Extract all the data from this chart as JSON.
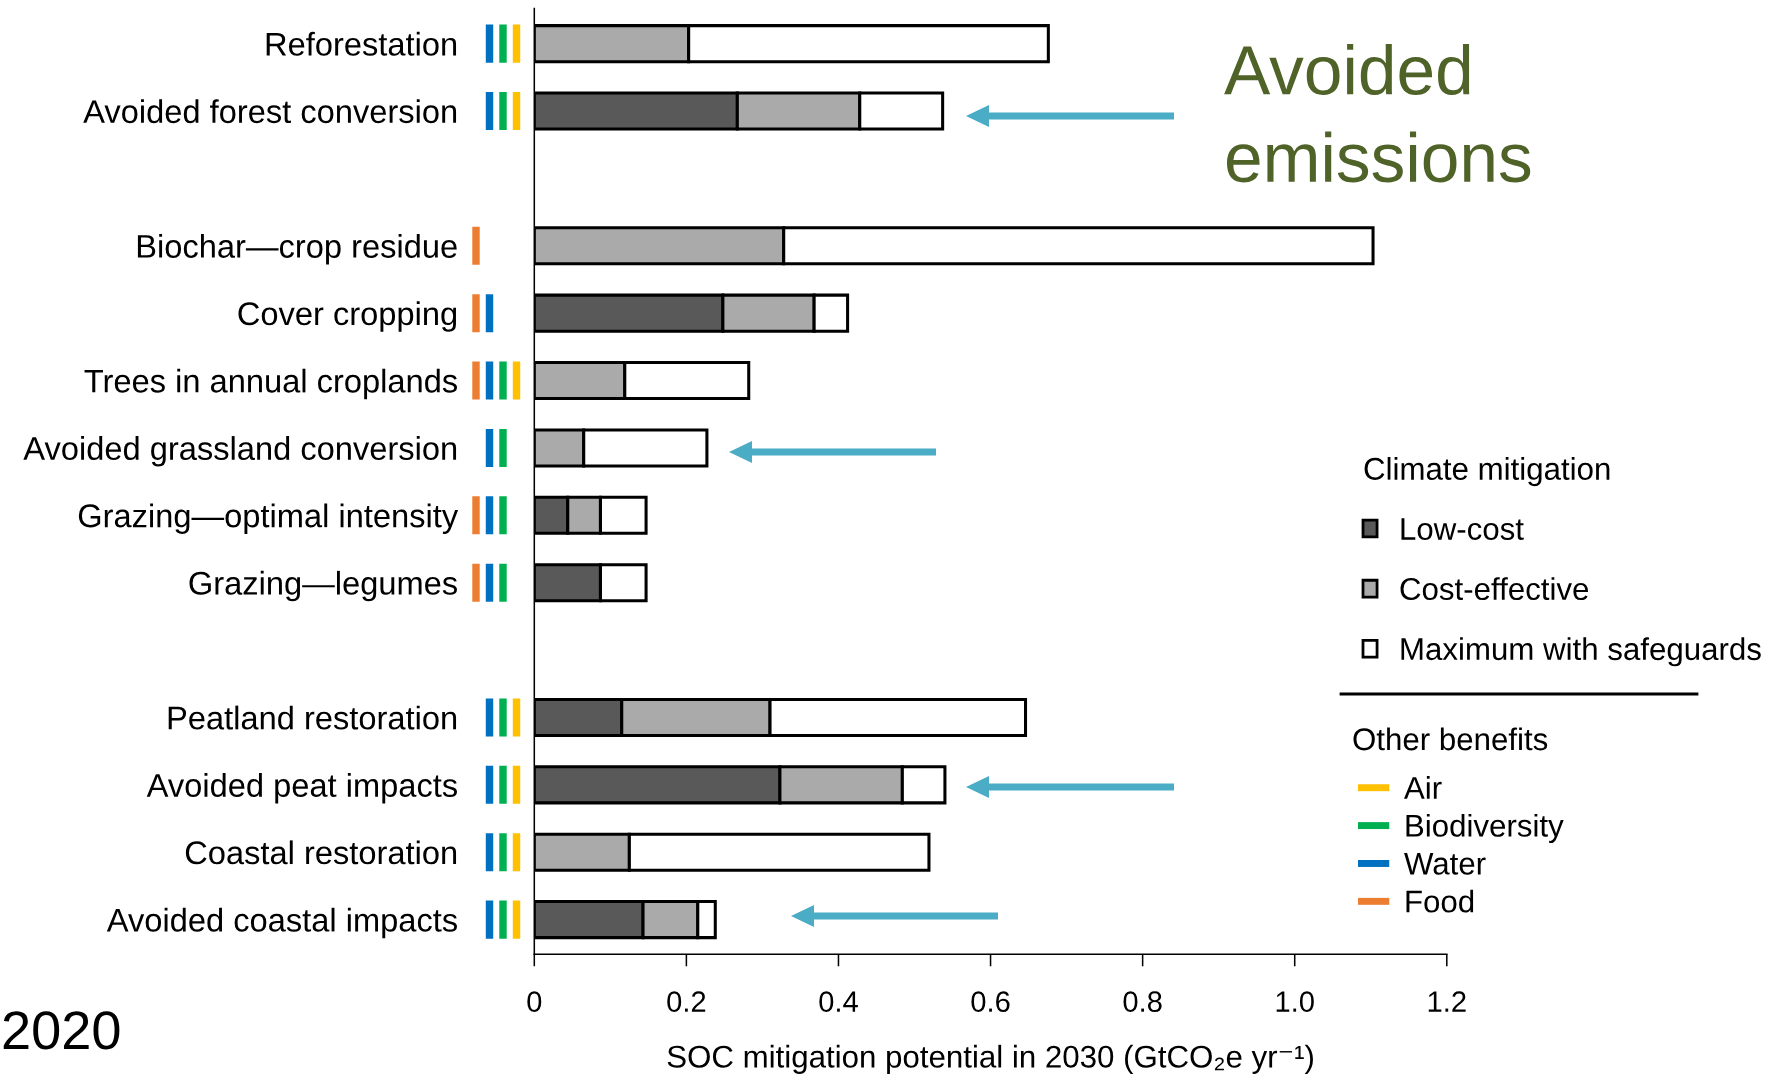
{
  "chart_data": {
    "type": "bar",
    "orientation": "horizontal",
    "stacked": true,
    "categories": [
      "Reforestation",
      "Avoided forest conversion",
      null,
      "Biochar—crop residue",
      "Cover cropping",
      "Trees in annual croplands",
      "Avoided grassland conversion",
      "Grazing—optimal intensity",
      "Grazing—legumes",
      null,
      "Peatland restoration",
      "Avoided peat impacts",
      "Coastal restoration",
      "Avoided coastal impacts"
    ],
    "series": [
      {
        "name": "Low-cost",
        "color": "#595959",
        "values": [
          null,
          0.267,
          null,
          null,
          0.248,
          null,
          null,
          0.044,
          0.087,
          null,
          0.115,
          0.323,
          null,
          0.143
        ]
      },
      {
        "name": "Cost-effective",
        "color": "#aaaaaa",
        "values": [
          0.203,
          0.161,
          null,
          0.328,
          0.12,
          0.119,
          0.065,
          0.043,
          null,
          null,
          0.195,
          0.161,
          0.125,
          0.072
        ]
      },
      {
        "name": "Maximum with safeguards",
        "color": "#ffffff",
        "values": [
          0.473,
          0.109,
          null,
          0.775,
          0.044,
          0.163,
          0.162,
          0.06,
          0.06,
          null,
          0.336,
          0.056,
          0.394,
          0.023
        ]
      },
      {
        "name": "Air",
        "type": "other",
        "color": "#ffc000",
        "values": [
          true,
          true,
          null,
          null,
          null,
          true,
          null,
          null,
          null,
          null,
          true,
          true,
          true,
          true
        ]
      },
      {
        "name": "Biodiversity",
        "type": "other",
        "color": "#00b050",
        "values": [
          true,
          true,
          null,
          null,
          null,
          true,
          true,
          true,
          true,
          null,
          true,
          true,
          true,
          true
        ]
      },
      {
        "name": "Water",
        "type": "other",
        "color": "#0070c0",
        "values": [
          true,
          true,
          null,
          null,
          true,
          true,
          true,
          true,
          true,
          null,
          true,
          true,
          true,
          true
        ]
      },
      {
        "name": "Food",
        "type": "other",
        "color": "#ed7d31",
        "values": [
          null,
          null,
          null,
          true,
          true,
          true,
          null,
          true,
          true,
          null,
          null,
          null,
          null,
          null
        ]
      }
    ],
    "xlim": [
      0,
      1.2
    ],
    "xticks": [
      0,
      0.2,
      0.4,
      0.6,
      0.8,
      {
        "value": 1,
        "label": "1.0"
      },
      1.2
    ],
    "xlabel": "SOC mitigation potential in 2030 (GtCO₂e yr⁻¹)",
    "legend_title": "Climate mitigation",
    "legend": "right",
    "annotations": [
      "Avoided\nemissions",
      "Other benefits",
      "2020"
    ]
  }
}
